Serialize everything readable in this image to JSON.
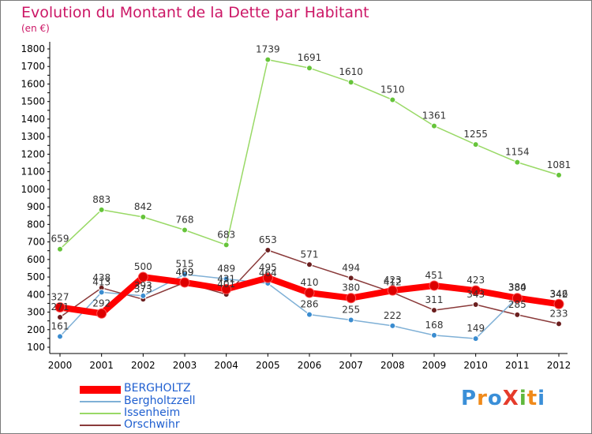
{
  "title": "Evolution du Montant de la Dette par Habitant",
  "subtitle": "(en €)",
  "brand": "ProXiti",
  "chart_data": {
    "type": "line",
    "title": "Evolution du Montant de la Dette par Habitant",
    "subtitle": "(en €)",
    "x": [
      "2000",
      "2001",
      "2002",
      "2003",
      "2004",
      "2005",
      "2006",
      "2007",
      "2008",
      "2009",
      "2010",
      "2011",
      "2012"
    ],
    "ylim": [
      100,
      1800
    ],
    "yticks": [
      100,
      200,
      300,
      400,
      500,
      600,
      700,
      800,
      900,
      1000,
      1100,
      1200,
      1300,
      1400,
      1500,
      1600,
      1700,
      1800
    ],
    "grid": false,
    "legend_placement": "bottom-left",
    "series": [
      {
        "name": "BERGHOLTZ",
        "color": "#ff0000",
        "marker_color": "#dd0000",
        "values": [
          327,
          292,
          500,
          469,
          431,
          495,
          410,
          380,
          423,
          451,
          423,
          380,
          346
        ],
        "labels": [
          "327",
          "292",
          "500",
          "469",
          "431",
          "495",
          "410",
          "380",
          "423",
          "451",
          "423",
          "380",
          "346"
        ]
      },
      {
        "name": "Bergholtzzell",
        "color": "#7fb0d6",
        "marker_color": "#3a8cd0",
        "values": [
          161,
          413,
          393,
          515,
          489,
          464,
          286,
          255,
          222,
          168,
          149,
          384,
          342
        ],
        "labels": [
          "161",
          "413",
          "393",
          "515",
          "489",
          "464",
          "286",
          "255",
          "222",
          "168",
          "149",
          "384",
          "342"
        ]
      },
      {
        "name": "Issenheim",
        "color": "#99d966",
        "marker_color": "#66c43a",
        "values": [
          659,
          883,
          842,
          768,
          683,
          1739,
          1691,
          1610,
          1510,
          1361,
          1255,
          1154,
          1081
        ],
        "labels": [
          "659",
          "883",
          "842",
          "768",
          "683",
          "1739",
          "1691",
          "1610",
          "1510",
          "1361",
          "1255",
          "1154",
          "1081"
        ]
      },
      {
        "name": "Orschwihr",
        "color": "#8a3a3a",
        "marker_color": "#6b1f1f",
        "values": [
          271,
          438,
          373,
          469,
          401,
          653,
          571,
          494,
          412,
          311,
          343,
          285,
          233
        ],
        "labels": [
          "271",
          "438",
          "373",
          "469",
          "401",
          "653",
          "571",
          "494",
          "412",
          "311",
          "343",
          "285",
          "233"
        ]
      }
    ]
  }
}
